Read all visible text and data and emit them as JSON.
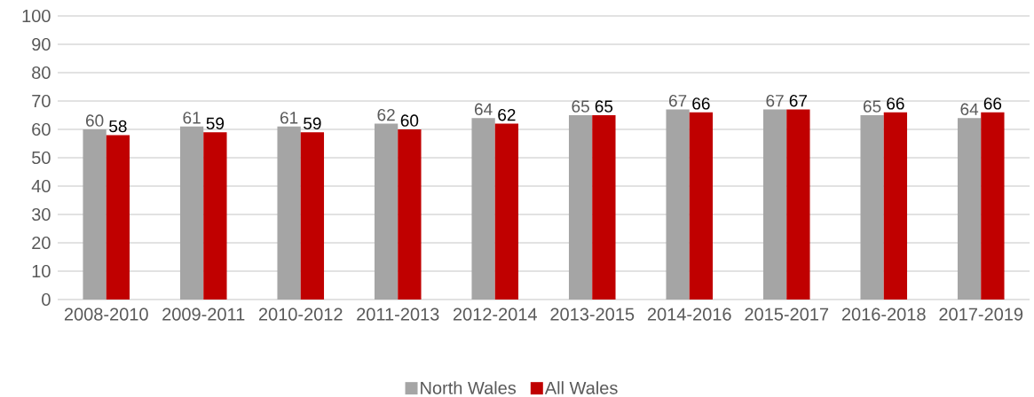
{
  "chart_data": {
    "type": "bar",
    "categories": [
      "2008-2010",
      "2009-2011",
      "2010-2012",
      "2011-2013",
      "2012-2014",
      "2013-2015",
      "2014-2016",
      "2015-2017",
      "2016-2018",
      "2017-2019"
    ],
    "series": [
      {
        "name": "North Wales",
        "color": "#a5a5a5",
        "values": [
          60,
          61,
          61,
          62,
          64,
          65,
          67,
          67,
          65,
          64
        ]
      },
      {
        "name": "All Wales",
        "color": "#c00000",
        "values": [
          58,
          59,
          59,
          60,
          62,
          65,
          66,
          67,
          66,
          66
        ]
      }
    ],
    "ylim": [
      0,
      100
    ],
    "yticks": [
      0,
      10,
      20,
      30,
      40,
      50,
      60,
      70,
      80,
      90,
      100
    ],
    "grid": "y",
    "legend": "bottom",
    "data_labels": true
  }
}
